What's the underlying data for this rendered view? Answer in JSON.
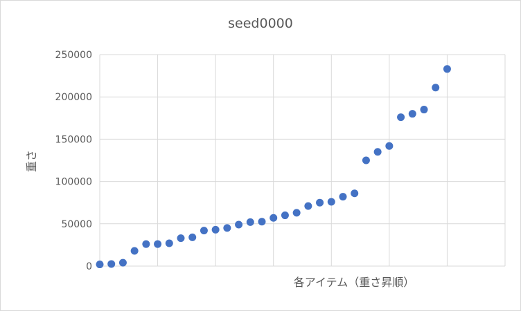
{
  "chart_data": {
    "type": "scatter",
    "title": "seed0000",
    "xlabel": "各アイテム（重さ昇順）",
    "ylabel": "重さ",
    "xlim": [
      0,
      35
    ],
    "ylim": [
      0,
      250000
    ],
    "x_gridlines": [
      0,
      5,
      10,
      15,
      20,
      25,
      30,
      35
    ],
    "y_ticks": [
      0,
      50000,
      100000,
      150000,
      200000,
      250000
    ],
    "y_tick_labels": [
      "0",
      "50000",
      "100000",
      "150000",
      "200000",
      "250000"
    ],
    "grid": true,
    "point_color": "#4472c4",
    "series": [
      {
        "x": [
          0,
          1,
          2,
          3,
          4,
          5,
          6,
          7,
          8,
          9,
          10,
          11,
          12,
          13,
          14,
          15,
          16,
          17,
          18,
          19,
          20,
          21,
          22,
          23,
          24,
          25,
          26,
          27,
          28,
          29,
          30
        ],
        "y": [
          2000,
          2500,
          4000,
          18000,
          26000,
          26000,
          27000,
          33000,
          34000,
          42000,
          43000,
          45000,
          49000,
          52000,
          52500,
          57000,
          60000,
          63000,
          71000,
          75000,
          76000,
          82000,
          86000,
          125000,
          135000,
          142000,
          176000,
          180000,
          185000,
          211000,
          233000
        ]
      }
    ]
  }
}
